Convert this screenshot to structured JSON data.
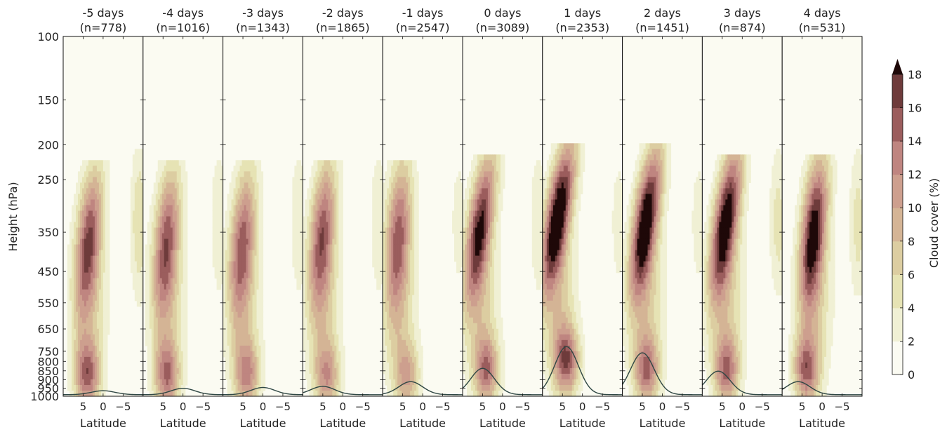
{
  "chart_data": {
    "type": "heatmap",
    "title": "",
    "ylabel": "Height (hPa)",
    "xlabel": "Latitude",
    "y_scale": "log",
    "ylim": [
      1000,
      100
    ],
    "y_ticks": [
      100,
      150,
      200,
      250,
      350,
      450,
      550,
      650,
      750,
      800,
      850,
      900,
      950,
      1000
    ],
    "y_tick_labels": [
      "100",
      "150",
      "200",
      "250",
      "350",
      "450",
      "550",
      "650",
      "750",
      "800",
      "850",
      "900",
      "950",
      "1000"
    ],
    "xlim": [
      10,
      -10
    ],
    "x_ticks": [
      5,
      0,
      -5
    ],
    "x_tick_labels": [
      "5",
      "0",
      "−5"
    ],
    "colorbar": {
      "label": "Cloud cover (%)",
      "levels": [
        0,
        2,
        4,
        6,
        8,
        10,
        12,
        14,
        16,
        18
      ],
      "tick_labels": [
        "0",
        "2",
        "4",
        "6",
        "8",
        "10",
        "12",
        "14",
        "16",
        "18"
      ],
      "colors": [
        "#fbfbf2",
        "#f0f0d4",
        "#e6e3b4",
        "#dccda1",
        "#d4b495",
        "#cd9f8e",
        "#bf8580",
        "#9b5d5d",
        "#6e3b3b",
        "#3f1a1a",
        "#1e0808"
      ],
      "extend": "max"
    },
    "panels": [
      {
        "title": "-5 days",
        "n_label": "(n=778)",
        "peak": 12.5,
        "lat_c": 3.5,
        "p_top": 240,
        "p_core": 360,
        "tilt": 0.6,
        "low_p": 875,
        "low_v": 13,
        "anvil": 6,
        "line": {
          "peak_lat": 0,
          "peak_p": 975
        }
      },
      {
        "title": "-4 days",
        "n_label": "(n=1016)",
        "peak": 11.5,
        "lat_c": 4.0,
        "p_top": 240,
        "p_core": 360,
        "tilt": 0.5,
        "low_p": 880,
        "low_v": 12,
        "anvil": 4,
        "line": {
          "peak_lat": 0,
          "peak_p": 960
        }
      },
      {
        "title": "-3 days",
        "n_label": "(n=1343)",
        "peak": 11.0,
        "lat_c": 5.0,
        "p_top": 240,
        "p_core": 360,
        "tilt": 0.5,
        "low_p": 875,
        "low_v": 11,
        "anvil": 4,
        "line": {
          "peak_lat": 0,
          "peak_p": 955
        }
      },
      {
        "title": "-2 days",
        "n_label": "(n=1865)",
        "peak": 12.0,
        "lat_c": 5.0,
        "p_top": 240,
        "p_core": 340,
        "tilt": 0.5,
        "low_p": 880,
        "low_v": 10,
        "anvil": 4,
        "line": {
          "peak_lat": 5,
          "peak_p": 948
        }
      },
      {
        "title": "-1 days",
        "n_label": "(n=2547)",
        "peak": 11.5,
        "lat_c": 6.0,
        "p_top": 235,
        "p_core": 340,
        "tilt": 0.4,
        "low_p": 880,
        "low_v": 9,
        "anvil": 3,
        "line": {
          "peak_lat": 3,
          "peak_p": 920
        }
      },
      {
        "title": "0 days",
        "n_label": "(n=3089)",
        "peak": 15.5,
        "lat_c": 5.5,
        "p_top": 225,
        "p_core": 330,
        "tilt": 0.9,
        "low_p": 850,
        "low_v": 12,
        "anvil": 4,
        "line": {
          "peak_lat": 5,
          "peak_p": 845
        }
      },
      {
        "title": "1 days",
        "n_label": "(n=2353)",
        "peak": 19.5,
        "lat_c": 6.0,
        "p_top": 210,
        "p_core": 310,
        "tilt": 1.0,
        "low_p": 800,
        "low_v": 14,
        "anvil": 3,
        "line": {
          "peak_lat": 4,
          "peak_p": 735
        }
      },
      {
        "title": "2 days",
        "n_label": "(n=1451)",
        "peak": 18.5,
        "lat_c": 4.0,
        "p_top": 215,
        "p_core": 320,
        "tilt": 0.9,
        "low_p": 850,
        "low_v": 12,
        "anvil": 3,
        "line": {
          "peak_lat": 5,
          "peak_p": 765
        }
      },
      {
        "title": "3 days",
        "n_label": "(n=874)",
        "peak": 18.0,
        "lat_c": 4.0,
        "p_top": 225,
        "p_core": 320,
        "tilt": 0.9,
        "low_p": 850,
        "low_v": 12,
        "anvil": 5,
        "line": {
          "peak_lat": 6,
          "peak_p": 860
        }
      },
      {
        "title": "4 days",
        "n_label": "(n=531)",
        "peak": 16.5,
        "lat_c": 2.0,
        "p_top": 225,
        "p_core": 340,
        "tilt": 0.6,
        "low_p": 850,
        "low_v": 13,
        "anvil": 5,
        "line": {
          "peak_lat": 6,
          "peak_p": 920
        }
      }
    ]
  }
}
